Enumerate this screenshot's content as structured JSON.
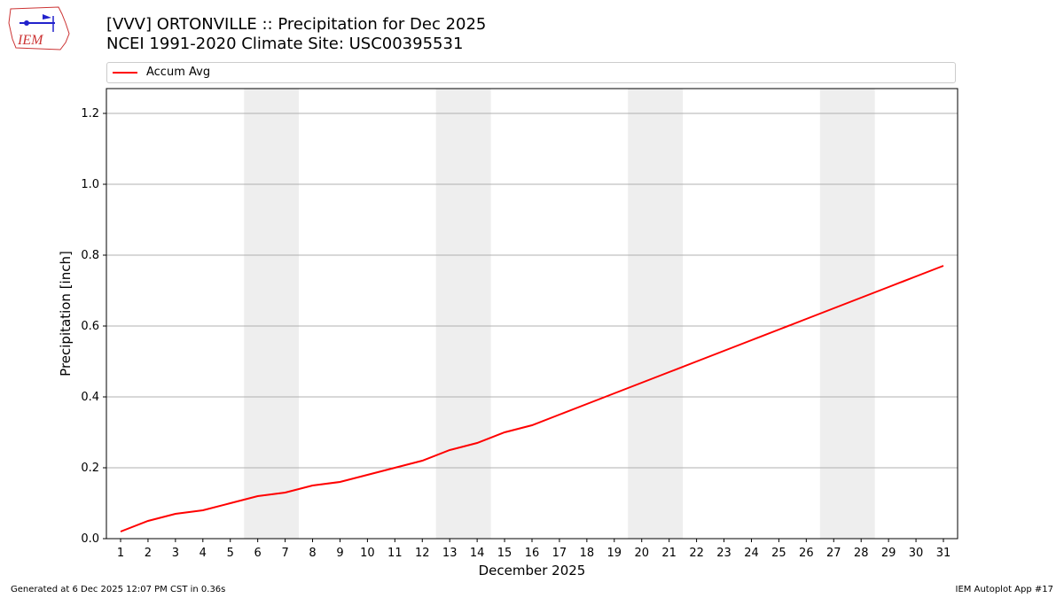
{
  "header": {
    "title_line1": "[VVV] ORTONVILLE :: Precipitation for Dec 2025",
    "title_line2": "NCEI 1991-2020 Climate Site: USC00395531",
    "logo_text": "IEM"
  },
  "legend": {
    "items": [
      {
        "label": "Accum Avg",
        "color": "#ff0000"
      }
    ]
  },
  "footer": {
    "generated": "Generated at 6 Dec 2025 12:07 PM CST in 0.36s",
    "app": "IEM Autoplot App #17"
  },
  "chart_data": {
    "type": "line",
    "title": "[VVV] ORTONVILLE :: Precipitation for Dec 2025 / NCEI 1991-2020 Climate Site: USC00395531",
    "xlabel": "December 2025",
    "ylabel": "Precipitation [inch]",
    "x": [
      1,
      2,
      3,
      4,
      5,
      6,
      7,
      8,
      9,
      10,
      11,
      12,
      13,
      14,
      15,
      16,
      17,
      18,
      19,
      20,
      21,
      22,
      23,
      24,
      25,
      26,
      27,
      28,
      29,
      30,
      31
    ],
    "series": [
      {
        "name": "Accum Avg",
        "color": "#ff0000",
        "values": [
          0.02,
          0.05,
          0.07,
          0.08,
          0.1,
          0.12,
          0.13,
          0.15,
          0.16,
          0.18,
          0.2,
          0.22,
          0.25,
          0.27,
          0.3,
          0.32,
          0.35,
          0.38,
          0.41,
          0.44,
          0.47,
          0.5,
          0.53,
          0.56,
          0.59,
          0.62,
          0.65,
          0.68,
          0.71,
          0.74,
          0.77
        ]
      }
    ],
    "ylim": [
      0,
      1.27
    ],
    "yticks": [
      0.0,
      0.2,
      0.4,
      0.6,
      0.8,
      1.0,
      1.2
    ],
    "ytick_labels": [
      "0.0",
      "0.2",
      "0.4",
      "0.6",
      "0.8",
      "1.0",
      "1.2"
    ],
    "grid": "horizontal",
    "weekend_shading": [
      [
        6,
        7
      ],
      [
        13,
        14
      ],
      [
        20,
        21
      ],
      [
        27,
        28
      ]
    ],
    "legend_position": "top"
  }
}
